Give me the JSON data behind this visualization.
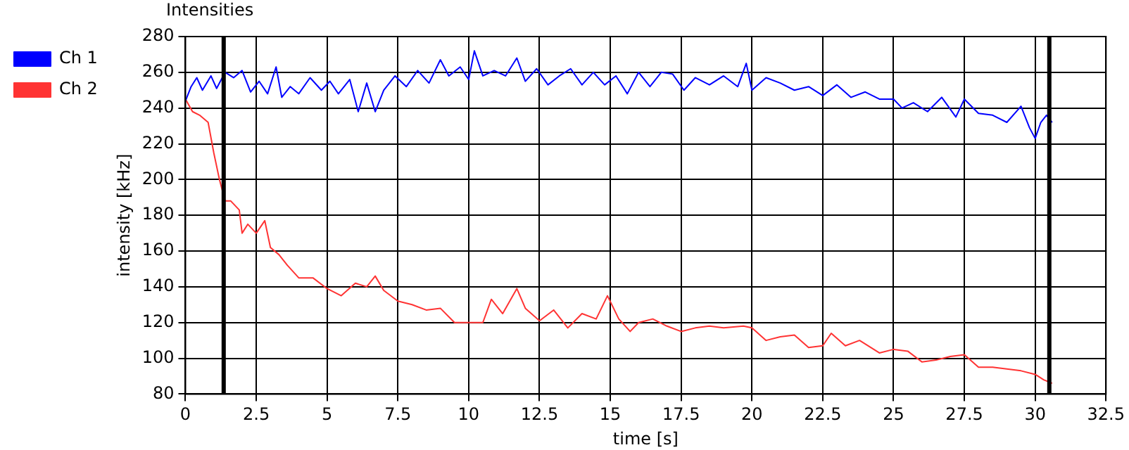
{
  "chart_data": {
    "type": "line",
    "title": "Intensities",
    "xlabel": "time [s]",
    "ylabel": "intensity [kHz]",
    "xlim": [
      0,
      32.5
    ],
    "xticks": [
      0,
      2.5,
      5,
      7.5,
      10,
      12.5,
      15,
      17.5,
      20,
      22.5,
      25,
      27.5,
      30,
      32.5
    ],
    "ylim": [
      80,
      280
    ],
    "yticks": [
      80,
      100,
      120,
      140,
      160,
      180,
      200,
      220,
      240,
      260,
      280
    ],
    "grid": true,
    "legend": "top left",
    "marker": "none",
    "line_style": "solid",
    "ref_lines": [
      {
        "axis": "x",
        "value": 1.35,
        "color": "#000000"
      },
      {
        "axis": "x",
        "value": 30.5,
        "color": "#000000"
      }
    ],
    "series": [
      {
        "name": "Ch 1",
        "color": "#0000ff",
        "x": [
          0,
          0.2,
          0.4,
          0.6,
          0.9,
          1.1,
          1.4,
          1.7,
          2.0,
          2.3,
          2.6,
          2.9,
          3.2,
          3.4,
          3.7,
          4.0,
          4.4,
          4.8,
          5.1,
          5.4,
          5.8,
          6.1,
          6.4,
          6.7,
          7.0,
          7.4,
          7.8,
          8.2,
          8.6,
          9.0,
          9.3,
          9.7,
          10.0,
          10.2,
          10.5,
          10.9,
          11.3,
          11.7,
          12.0,
          12.4,
          12.8,
          13.2,
          13.6,
          14.0,
          14.4,
          14.8,
          15.2,
          15.6,
          16.0,
          16.4,
          16.8,
          17.2,
          17.6,
          18.0,
          18.5,
          19.0,
          19.5,
          19.8,
          20.0,
          20.5,
          21.0,
          21.5,
          22.0,
          22.5,
          23.0,
          23.5,
          24.0,
          24.5,
          25.0,
          25.3,
          25.7,
          26.2,
          26.7,
          27.2,
          27.5,
          28.0,
          28.5,
          29.0,
          29.5,
          29.8,
          30.0,
          30.2,
          30.4,
          30.6
        ],
        "values": [
          244,
          252,
          257,
          250,
          258,
          251,
          260,
          257,
          261,
          249,
          255,
          248,
          263,
          246,
          252,
          248,
          257,
          250,
          255,
          248,
          256,
          238,
          254,
          238,
          250,
          258,
          252,
          261,
          254,
          267,
          258,
          263,
          256,
          272,
          258,
          261,
          258,
          268,
          255,
          262,
          253,
          258,
          262,
          253,
          260,
          253,
          258,
          248,
          260,
          252,
          260,
          259,
          250,
          257,
          253,
          258,
          252,
          265,
          250,
          257,
          254,
          250,
          252,
          247,
          253,
          246,
          249,
          245,
          245,
          240,
          243,
          238,
          246,
          235,
          245,
          237,
          236,
          232,
          241,
          229,
          223,
          232,
          236,
          232
        ]
      },
      {
        "name": "Ch 2",
        "color": "#ff3333",
        "x": [
          0,
          0.25,
          0.5,
          0.8,
          1.0,
          1.2,
          1.4,
          1.6,
          1.9,
          2.0,
          2.2,
          2.5,
          2.8,
          3.0,
          3.3,
          3.6,
          4.0,
          4.5,
          5.0,
          5.5,
          6.0,
          6.4,
          6.7,
          7.0,
          7.5,
          8.0,
          8.5,
          9.0,
          9.5,
          10.0,
          10.5,
          10.8,
          11.2,
          11.7,
          12.0,
          12.5,
          13.0,
          13.5,
          14.0,
          14.5,
          14.9,
          15.3,
          15.7,
          16.0,
          16.5,
          17.0,
          17.5,
          18.0,
          18.5,
          19.0,
          19.7,
          20.0,
          20.5,
          21.0,
          21.5,
          22.0,
          22.5,
          22.8,
          23.3,
          23.8,
          24.5,
          25.0,
          25.5,
          26.0,
          26.5,
          27.0,
          27.5,
          28.0,
          28.5,
          29.0,
          29.5,
          30.0,
          30.3,
          30.6
        ],
        "values": [
          245,
          238,
          236,
          232,
          215,
          200,
          188,
          188,
          183,
          170,
          175,
          170,
          177,
          162,
          158,
          152,
          145,
          145,
          139,
          135,
          142,
          140,
          146,
          138,
          132,
          130,
          127,
          128,
          120,
          120,
          120,
          133,
          125,
          139,
          128,
          121,
          127,
          117,
          125,
          122,
          135,
          122,
          115,
          120,
          122,
          118,
          115,
          117,
          118,
          117,
          118,
          117,
          110,
          112,
          113,
          106,
          107,
          114,
          107,
          110,
          103,
          105,
          104,
          98,
          99,
          101,
          102,
          95,
          95,
          94,
          93,
          91,
          88,
          86
        ]
      }
    ]
  }
}
